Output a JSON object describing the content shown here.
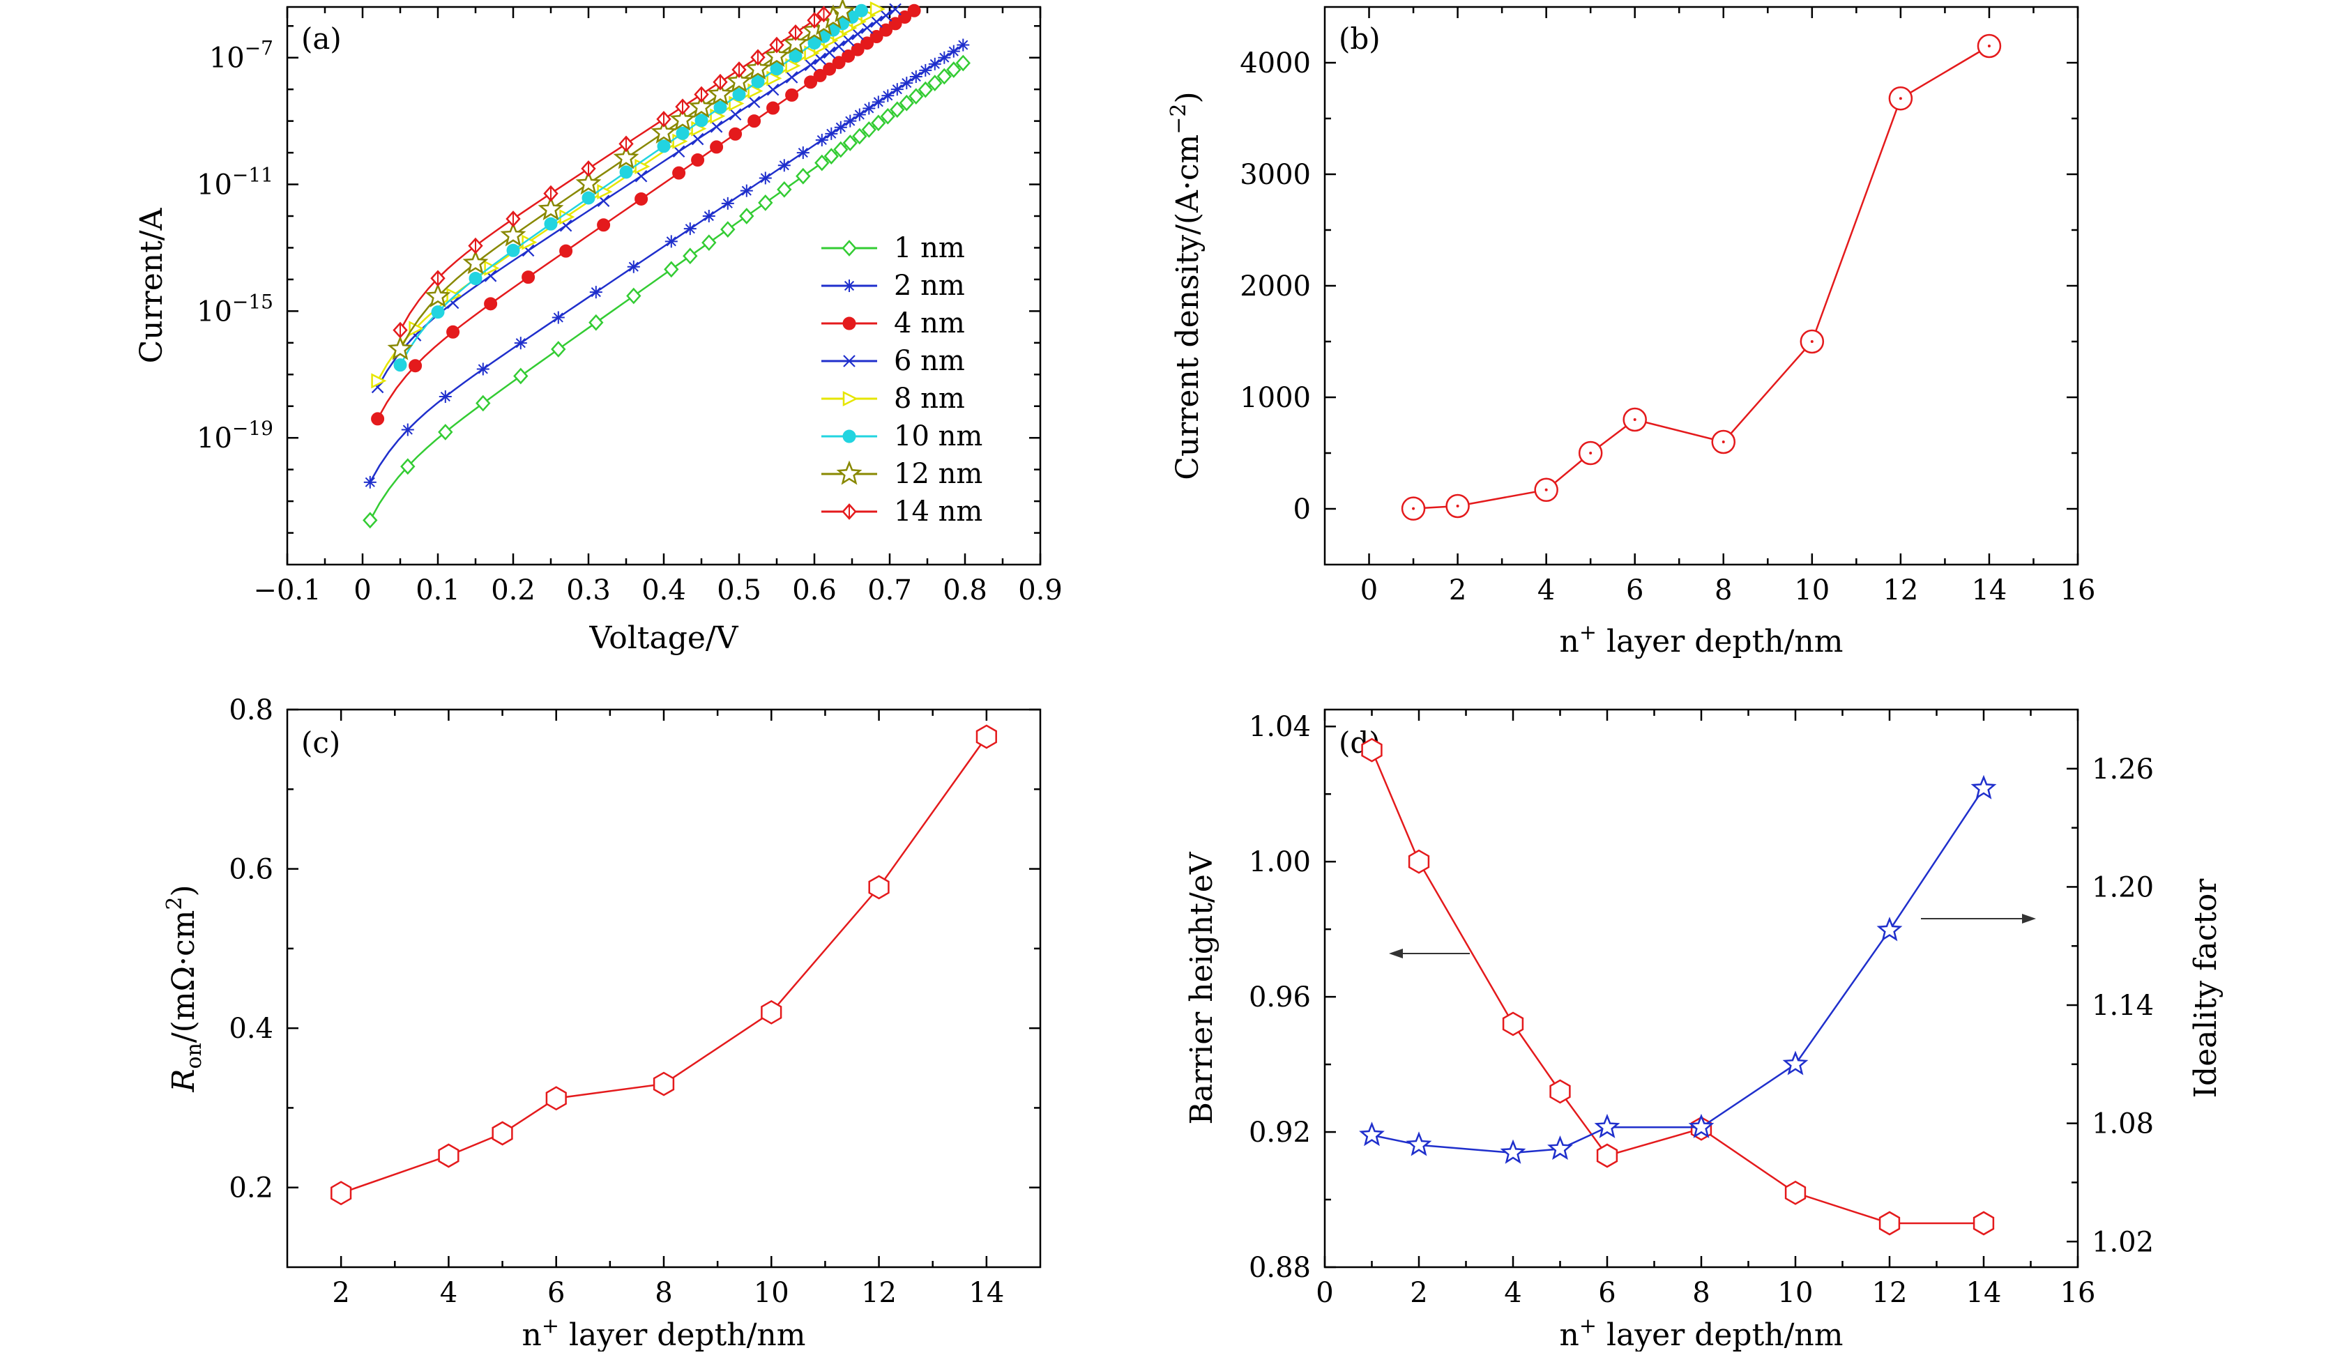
{
  "panels": {
    "a": {
      "label": "(a)",
      "xlabel": "Voltage/V",
      "ylabel": "Current/A",
      "xticks": [
        "−0.1",
        "0",
        "0.1",
        "0.2",
        "0.3",
        "0.4",
        "0.5",
        "0.6",
        "0.7",
        "0.8",
        "0.9"
      ],
      "yticks": [
        "10−7",
        "10−11",
        "10−15",
        "10−19"
      ]
    },
    "b": {
      "label": "(b)",
      "xlabel": "n+ layer depth/nm",
      "ylabel": "Current density/(A·cm−2)",
      "xticks": [
        "0",
        "2",
        "4",
        "6",
        "8",
        "10",
        "12",
        "14",
        "16"
      ],
      "yticks": [
        "0",
        "1000",
        "2000",
        "3000",
        "4000"
      ]
    },
    "c": {
      "label": "(c)",
      "xlabel": "n+ layer depth/nm",
      "ylabel": "Ron/(mΩ·cm2)",
      "xticks": [
        "2",
        "4",
        "6",
        "8",
        "10",
        "12",
        "14"
      ],
      "yticks": [
        "0.2",
        "0.4",
        "0.6",
        "0.8"
      ]
    },
    "d": {
      "label": "(d)",
      "xlabel": "n+ layer depth/nm",
      "ylabel": "Barrier height/eV",
      "y2label": "Ideality factor",
      "xticks": [
        "0",
        "2",
        "4",
        "6",
        "8",
        "10",
        "12",
        "14",
        "16"
      ],
      "yticks": [
        "0.88",
        "0.92",
        "0.96",
        "1.00",
        "1.04"
      ],
      "y2ticks": [
        "1.02",
        "1.08",
        "1.14",
        "1.20",
        "1.26"
      ]
    }
  },
  "chart_data": [
    {
      "panel": "a",
      "type": "line",
      "xlabel": "Voltage/V",
      "ylabel": "Current/A",
      "xlim": [
        -0.1,
        0.9
      ],
      "ylim_log10": [
        -23,
        -5.4
      ],
      "yscale": "log",
      "legend_position": "lower-right",
      "series": [
        {
          "name": "1 nm",
          "color": "#33cc33",
          "marker": "diamond-open",
          "start_v": 0.01,
          "log_i_start": -21.6,
          "slope_per_v": 16.8
        },
        {
          "name": "2 nm",
          "color": "#1f2fcc",
          "marker": "asterisk",
          "start_v": 0.01,
          "log_i_start": -20.4,
          "slope_per_v": 16.0
        },
        {
          "name": "4 nm",
          "color": "#e41a1c",
          "marker": "circle-filled",
          "start_v": 0.02,
          "log_i_start": -18.4,
          "slope_per_v": 16.4
        },
        {
          "name": "6 nm",
          "color": "#1f2fcc",
          "marker": "x",
          "start_v": 0.02,
          "log_i_start": -17.4,
          "slope_per_v": 15.6
        },
        {
          "name": "8 nm",
          "color": "#e6e600",
          "marker": "triangle-right-open",
          "start_v": 0.02,
          "log_i_start": -17.2,
          "slope_per_v": 15.9
        },
        {
          "name": "10 nm",
          "color": "#22d4e0",
          "marker": "circle-filled",
          "start_v": 0.05,
          "log_i_start": -16.7,
          "slope_per_v": 16.3
        },
        {
          "name": "12 nm",
          "color": "#888800",
          "marker": "star-open",
          "start_v": 0.05,
          "log_i_start": -16.2,
          "slope_per_v": 16.1
        },
        {
          "name": "14 nm",
          "color": "#e41a1c",
          "marker": "diamond-line",
          "start_v": 0.05,
          "log_i_start": -15.6,
          "slope_per_v": 15.6
        }
      ]
    },
    {
      "panel": "b",
      "type": "line",
      "xlabel": "n+ layer depth/nm",
      "ylabel": "Current density/(A·cm−2)",
      "xlim": [
        -1,
        16
      ],
      "ylim": [
        -500,
        4500
      ],
      "x": [
        1,
        2,
        4,
        5,
        6,
        8,
        10,
        12,
        14
      ],
      "y": [
        2,
        25,
        170,
        500,
        800,
        600,
        1500,
        3680,
        4150
      ],
      "color": "#e41a1c",
      "marker": "circle-dot-open"
    },
    {
      "panel": "c",
      "type": "line",
      "xlabel": "n+ layer depth/nm",
      "ylabel": "Ron/(mΩ·cm2)",
      "xlim": [
        1,
        15
      ],
      "ylim": [
        0.1,
        0.8
      ],
      "x": [
        2,
        4,
        5,
        6,
        8,
        10,
        12,
        14
      ],
      "y": [
        0.193,
        0.24,
        0.268,
        0.312,
        0.33,
        0.42,
        0.577,
        0.766
      ],
      "color": "#e41a1c",
      "marker": "hexagon-open"
    },
    {
      "panel": "d",
      "type": "line",
      "xlabel": "n+ layer depth/nm",
      "xlim": [
        0,
        16
      ],
      "series": [
        {
          "axis": "left",
          "ylabel": "Barrier height/eV",
          "ylim": [
            0.88,
            1.045
          ],
          "x": [
            1,
            2,
            4,
            5,
            6,
            8,
            10,
            12,
            14
          ],
          "y": [
            1.033,
            1.0,
            0.952,
            0.932,
            0.913,
            0.921,
            0.902,
            0.893,
            0.893
          ],
          "color": "#e41a1c",
          "marker": "hexagon-open"
        },
        {
          "axis": "right",
          "ylabel": "Ideality factor",
          "ylim": [
            1.007,
            1.29
          ],
          "x": [
            1,
            2,
            4,
            5,
            6,
            8,
            10,
            12,
            14
          ],
          "y": [
            1.074,
            1.069,
            1.065,
            1.067,
            1.078,
            1.078,
            1.11,
            1.178,
            1.25
          ],
          "color": "#1f2fcc",
          "marker": "star-open"
        }
      ],
      "annotations": [
        "arrow-left-to-barrier-height",
        "arrow-right-to-ideality-factor"
      ]
    }
  ]
}
